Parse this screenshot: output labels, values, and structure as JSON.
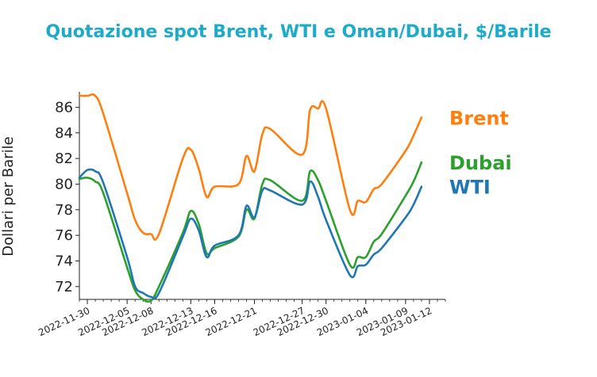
{
  "chart_data": {
    "type": "line",
    "title": "Quotazione spot Brent, WTI e Oman/Dubai, $/Barile",
    "ylabel": "Dollari per Barile",
    "xlabel": "",
    "ylim": [
      71.0,
      87.2
    ],
    "yticks": [
      72,
      74,
      76,
      78,
      80,
      82,
      84,
      86
    ],
    "x_range": [
      "2022-11-29",
      "2023-01-14"
    ],
    "xticks": [
      "2022-11-30",
      "2022-12-05",
      "2022-12-08",
      "2022-12-13",
      "2022-12-16",
      "2022-12-21",
      "2022-12-27",
      "2022-12-30",
      "2023-01-04",
      "2023-01-09",
      "2023-01-12"
    ],
    "legend": "labels at line ends (right)",
    "grid": false,
    "colors": {
      "title": "#1cabc8",
      "Brent": "#ff7f0e",
      "Dubai": "#2ca02c",
      "WTI": "#1f77b4"
    },
    "series": [
      {
        "name": "Brent",
        "points": [
          [
            "2022-11-29",
            86.9
          ],
          [
            "2022-11-30",
            86.9
          ],
          [
            "2022-12-01",
            86.9
          ],
          [
            "2022-12-02",
            85.5
          ],
          [
            "2022-12-05",
            79.3
          ],
          [
            "2022-12-06",
            77.2
          ],
          [
            "2022-12-07",
            76.2
          ],
          [
            "2022-12-08",
            76.1
          ],
          [
            "2022-12-09",
            76.1
          ],
          [
            "2022-12-12",
            82.0
          ],
          [
            "2022-12-13",
            82.7
          ],
          [
            "2022-12-14",
            81.2
          ],
          [
            "2022-12-15",
            79.0
          ],
          [
            "2022-12-16",
            79.8
          ],
          [
            "2022-12-19",
            80.0
          ],
          [
            "2022-12-20",
            82.2
          ],
          [
            "2022-12-21",
            81.0
          ],
          [
            "2022-12-22",
            83.9
          ],
          [
            "2022-12-23",
            84.3
          ],
          [
            "2022-12-27",
            82.3
          ],
          [
            "2022-12-28",
            85.8
          ],
          [
            "2022-12-29",
            85.9
          ],
          [
            "2022-12-30",
            85.9
          ],
          [
            "2023-01-02",
            78.0
          ],
          [
            "2023-01-03",
            78.7
          ],
          [
            "2023-01-04",
            78.6
          ],
          [
            "2023-01-05",
            79.6
          ],
          [
            "2023-01-06",
            80.0
          ],
          [
            "2023-01-09",
            82.6
          ],
          [
            "2023-01-10",
            83.8
          ],
          [
            "2023-01-11",
            85.2
          ]
        ]
      },
      {
        "name": "Dubai",
        "points": [
          [
            "2022-11-29",
            80.4
          ],
          [
            "2022-11-30",
            80.5
          ],
          [
            "2022-12-01",
            80.2
          ],
          [
            "2022-12-02",
            79.3
          ],
          [
            "2022-12-05",
            73.5
          ],
          [
            "2022-12-06",
            71.7
          ],
          [
            "2022-12-07",
            71.0
          ],
          [
            "2022-12-08",
            70.9
          ],
          [
            "2022-12-09",
            72.0
          ],
          [
            "2022-12-12",
            76.2
          ],
          [
            "2022-12-13",
            77.9
          ],
          [
            "2022-12-14",
            76.9
          ],
          [
            "2022-12-15",
            74.6
          ],
          [
            "2022-12-16",
            75.0
          ],
          [
            "2022-12-19",
            75.9
          ],
          [
            "2022-12-20",
            78.0
          ],
          [
            "2022-12-21",
            77.3
          ],
          [
            "2022-12-22",
            80.0
          ],
          [
            "2022-12-23",
            80.3
          ],
          [
            "2022-12-27",
            78.7
          ],
          [
            "2022-12-28",
            81.0
          ],
          [
            "2022-12-29",
            80.3
          ],
          [
            "2022-12-30",
            78.7
          ],
          [
            "2023-01-02",
            73.7
          ],
          [
            "2023-01-03",
            74.3
          ],
          [
            "2023-01-04",
            74.3
          ],
          [
            "2023-01-05",
            75.5
          ],
          [
            "2023-01-06",
            76.1
          ],
          [
            "2023-01-09",
            79.1
          ],
          [
            "2023-01-10",
            80.2
          ],
          [
            "2023-01-11",
            81.7
          ]
        ]
      },
      {
        "name": "WTI",
        "points": [
          [
            "2022-11-29",
            80.5
          ],
          [
            "2022-11-30",
            81.1
          ],
          [
            "2022-12-01",
            81.0
          ],
          [
            "2022-12-02",
            80.1
          ],
          [
            "2022-12-05",
            74.3
          ],
          [
            "2022-12-06",
            72.0
          ],
          [
            "2022-12-07",
            71.5
          ],
          [
            "2022-12-08",
            71.2
          ],
          [
            "2022-12-09",
            71.5
          ],
          [
            "2022-12-12",
            75.9
          ],
          [
            "2022-12-13",
            77.3
          ],
          [
            "2022-12-14",
            76.4
          ],
          [
            "2022-12-15",
            74.3
          ],
          [
            "2022-12-16",
            75.2
          ],
          [
            "2022-12-19",
            76.0
          ],
          [
            "2022-12-20",
            78.3
          ],
          [
            "2022-12-21",
            77.4
          ],
          [
            "2022-12-22",
            79.5
          ],
          [
            "2022-12-23",
            79.5
          ],
          [
            "2022-12-27",
            78.4
          ],
          [
            "2022-12-28",
            80.2
          ],
          [
            "2022-12-29",
            79.0
          ],
          [
            "2022-12-30",
            77.2
          ],
          [
            "2023-01-02",
            72.9
          ],
          [
            "2023-01-03",
            73.6
          ],
          [
            "2023-01-04",
            73.7
          ],
          [
            "2023-01-05",
            74.5
          ],
          [
            "2023-01-06",
            75.0
          ],
          [
            "2023-01-09",
            77.4
          ],
          [
            "2023-01-10",
            78.4
          ],
          [
            "2023-01-11",
            79.8
          ]
        ]
      }
    ]
  }
}
